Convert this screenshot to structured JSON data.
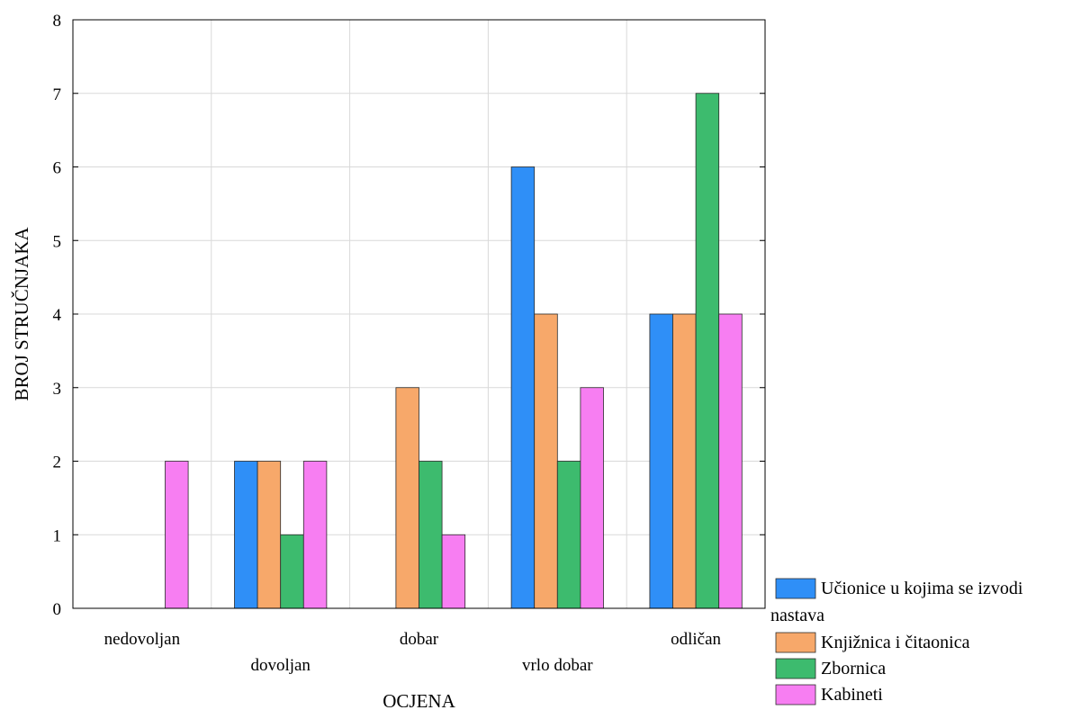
{
  "chart_data": {
    "type": "bar",
    "xlabel": "OCJENA",
    "ylabel": "BROJ STRUČNJAKA",
    "categories": [
      "nedovoljan",
      "dovoljan",
      "dobar",
      "vrlo dobar",
      "odličan"
    ],
    "ylim": [
      0,
      8
    ],
    "yticks": [
      "0",
      "1",
      "2",
      "3",
      "4",
      "5",
      "6",
      "7",
      "8"
    ],
    "grid": true,
    "legend_position": "bottom-right",
    "series": [
      {
        "name": "Učionice u kojima se izvodi nastava",
        "name_lines": [
          "Učionice u kojima se izvodi",
          "nastava"
        ],
        "color": "#2f8ff7",
        "values": [
          0,
          2,
          0,
          6,
          4
        ]
      },
      {
        "name": "Knjižnica i čitaonica",
        "color": "#f7a86a",
        "values": [
          0,
          2,
          3,
          4,
          4
        ]
      },
      {
        "name": "Zbornica",
        "color": "#3dbb6e",
        "values": [
          0,
          1,
          2,
          2,
          7
        ]
      },
      {
        "name": "Kabineti",
        "color": "#f77ef2",
        "values": [
          2,
          2,
          1,
          3,
          4
        ]
      }
    ]
  }
}
